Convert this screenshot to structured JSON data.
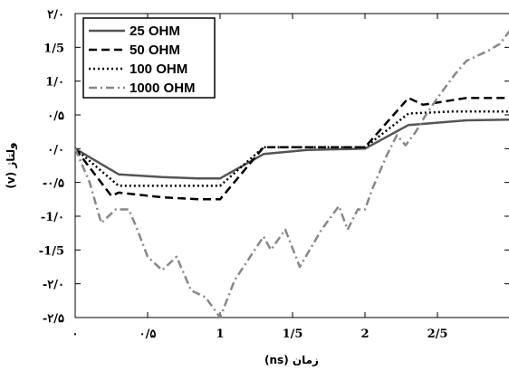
{
  "chart_data": {
    "type": "line",
    "xlabel": "زمان (ns)",
    "ylabel": "ولتاژ (v)",
    "xlim": [
      0,
      3
    ],
    "ylim": [
      -2.5,
      2.0
    ],
    "x_ticks": [
      {
        "value": 0,
        "label": "۰"
      },
      {
        "value": 0.5,
        "label": "۰/۵"
      },
      {
        "value": 1,
        "label": "1"
      },
      {
        "value": 1.5,
        "label": "1/5"
      },
      {
        "value": 2,
        "label": "2"
      },
      {
        "value": 2.5,
        "label": "2/5"
      }
    ],
    "y_ticks": [
      {
        "value": 2.0,
        "label": "۲/۰"
      },
      {
        "value": 1.5,
        "label": "1/5"
      },
      {
        "value": 1.0,
        "label": "1/۰"
      },
      {
        "value": 0.5,
        "label": "۰/۵"
      },
      {
        "value": 0.0,
        "label": "۰/۰"
      },
      {
        "value": -0.5,
        "label": "-۰/۵"
      },
      {
        "value": -1.0,
        "label": "-1/۰"
      },
      {
        "value": -1.5,
        "label": "-1/5"
      },
      {
        "value": -2.0,
        "label": "-۲/۰"
      },
      {
        "value": -2.5,
        "label": "-۲/۵"
      }
    ],
    "legend_position": "top-left",
    "series": [
      {
        "name": "25 OHM",
        "style": "solid",
        "color": "#555555",
        "x": [
          0,
          0.3,
          0.6,
          0.85,
          1.0,
          1.3,
          1.6,
          2.0,
          2.3,
          2.7,
          3.0
        ],
        "y": [
          0,
          -0.38,
          -0.42,
          -0.44,
          -0.44,
          -0.08,
          -0.02,
          0,
          0.35,
          0.42,
          0.43
        ]
      },
      {
        "name": "50 OHM",
        "style": "dashed",
        "color": "#000000",
        "x": [
          0,
          0.25,
          0.3,
          0.6,
          0.85,
          1.0,
          1.3,
          1.6,
          2.0,
          2.3,
          2.4,
          2.7,
          3.0
        ],
        "y": [
          0,
          -0.7,
          -0.65,
          -0.72,
          -0.75,
          -0.75,
          0.02,
          0.02,
          0.02,
          0.75,
          0.65,
          0.75,
          0.75
        ]
      },
      {
        "name": "100 OHM",
        "style": "dotted",
        "color": "#000000",
        "x": [
          0,
          0.3,
          0.6,
          1.0,
          1.3,
          1.6,
          2.0,
          2.3,
          2.6,
          3.0
        ],
        "y": [
          0,
          -0.55,
          -0.55,
          -0.55,
          0.02,
          0.02,
          0.02,
          0.52,
          0.55,
          0.55
        ]
      },
      {
        "name": "1000 OHM",
        "style": "dashdot",
        "color": "#888888",
        "x": [
          0,
          0.1,
          0.18,
          0.28,
          0.37,
          0.42,
          0.5,
          0.6,
          0.7,
          0.8,
          0.9,
          1.0,
          1.1,
          1.3,
          1.35,
          1.45,
          1.55,
          1.7,
          1.82,
          1.88,
          1.95,
          2.0,
          2.05,
          2.15,
          2.22,
          2.28,
          2.35,
          2.42,
          2.5,
          2.62,
          2.7,
          2.85,
          2.93,
          3.0
        ],
        "y": [
          0,
          -0.5,
          -1.1,
          -0.9,
          -0.9,
          -1.15,
          -1.6,
          -1.8,
          -1.6,
          -2.1,
          -2.2,
          -2.5,
          -1.95,
          -1.3,
          -1.5,
          -1.2,
          -1.75,
          -1.2,
          -0.85,
          -1.2,
          -0.9,
          -0.9,
          -0.6,
          -0.1,
          0.2,
          0.05,
          0.25,
          0.5,
          0.75,
          1.1,
          1.3,
          1.45,
          1.55,
          1.75
        ]
      }
    ]
  }
}
